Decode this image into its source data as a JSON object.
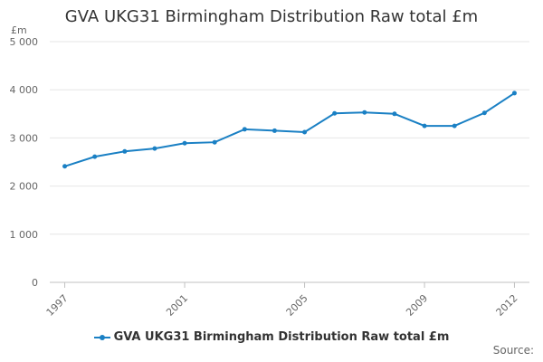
{
  "chart_data": {
    "type": "line",
    "title": "GVA UKG31 Birmingham Distribution Raw total £m",
    "unit_label": "£m",
    "x": [
      1997,
      1998,
      1999,
      2000,
      2001,
      2002,
      2003,
      2004,
      2005,
      2006,
      2007,
      2008,
      2009,
      2010,
      2011,
      2012
    ],
    "x_tick_labels": [
      "1997",
      "2001",
      "2005",
      "2009",
      "2012"
    ],
    "y_tick_labels": [
      "0",
      "1 000",
      "2 000",
      "3 000",
      "4 000",
      "5 000"
    ],
    "ylim": [
      0,
      5000
    ],
    "grid": true,
    "legend_position": "bottom",
    "series": [
      {
        "name": "GVA UKG31 Birmingham Distribution Raw total £m",
        "color": "#1a80c4",
        "values": [
          2410,
          2610,
          2720,
          2780,
          2890,
          2910,
          3180,
          3150,
          3120,
          3510,
          3530,
          3500,
          3250,
          3250,
          3520,
          3930
        ]
      }
    ]
  },
  "source_label": "Source:"
}
